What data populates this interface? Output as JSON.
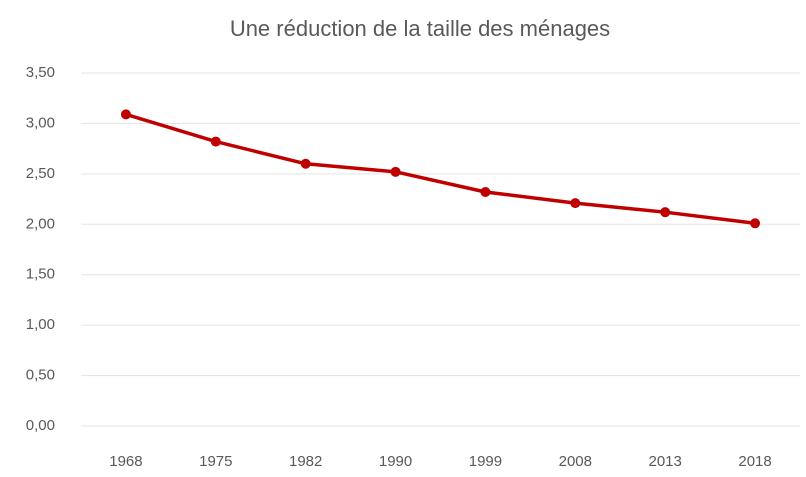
{
  "chart_data": {
    "type": "line",
    "title": "Une réduction de la taille des ménages",
    "categories": [
      "1968",
      "1975",
      "1982",
      "1990",
      "1999",
      "2008",
      "2013",
      "2018"
    ],
    "values": [
      3.09,
      2.82,
      2.6,
      2.52,
      2.32,
      2.21,
      2.12,
      2.01
    ],
    "color": "#c00000",
    "ylim": [
      0,
      3.5
    ],
    "yticks": [
      {
        "value": 0,
        "label": "0,00"
      },
      {
        "value": 0.5,
        "label": "0,50"
      },
      {
        "value": 1,
        "label": "1,00"
      },
      {
        "value": 1.5,
        "label": "1,50"
      },
      {
        "value": 2,
        "label": "2,00"
      },
      {
        "value": 2.5,
        "label": "2,50"
      },
      {
        "value": 3,
        "label": "3,00"
      },
      {
        "value": 3.5,
        "label": "3,50"
      }
    ],
    "grid": true
  }
}
